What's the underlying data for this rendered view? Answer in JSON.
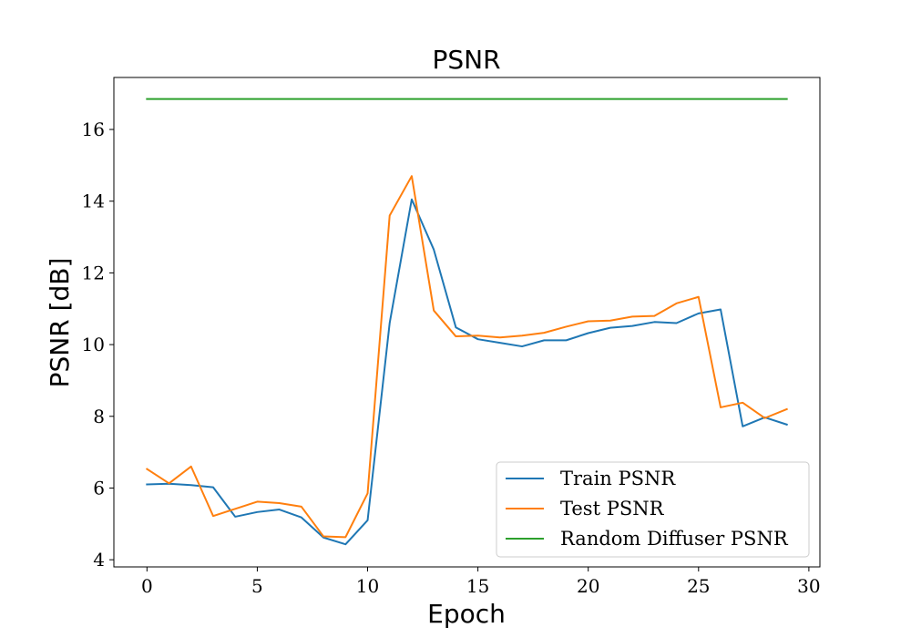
{
  "chart_data": {
    "type": "line",
    "title": "PSNR",
    "xlabel": "Epoch",
    "ylabel": "PSNR [dB]",
    "xlim": [
      -1.5,
      30.5
    ],
    "ylim": [
      3.8,
      17.45
    ],
    "xticks": [
      0,
      5,
      10,
      15,
      20,
      25,
      30
    ],
    "yticks": [
      4,
      6,
      8,
      10,
      12,
      14,
      16
    ],
    "grid": false,
    "legend": "lower-right",
    "x": [
      0,
      1,
      2,
      3,
      4,
      5,
      6,
      7,
      8,
      9,
      10,
      11,
      12,
      13,
      14,
      15,
      16,
      17,
      18,
      19,
      20,
      21,
      22,
      23,
      24,
      25,
      26,
      27,
      28,
      29
    ],
    "series": [
      {
        "name": "Train PSNR",
        "color": "#1f77b4",
        "values": [
          6.1,
          6.12,
          6.08,
          6.02,
          5.2,
          5.33,
          5.4,
          5.18,
          4.62,
          4.43,
          5.1,
          10.6,
          14.05,
          12.65,
          10.48,
          10.15,
          10.05,
          9.95,
          10.12,
          10.12,
          10.32,
          10.47,
          10.52,
          10.63,
          10.6,
          10.87,
          10.98,
          7.72,
          7.97,
          7.77
        ]
      },
      {
        "name": "Test PSNR",
        "color": "#ff7f0e",
        "values": [
          6.53,
          6.13,
          6.6,
          5.22,
          5.42,
          5.62,
          5.58,
          5.48,
          4.65,
          4.63,
          5.85,
          13.6,
          14.7,
          10.95,
          10.23,
          10.25,
          10.2,
          10.25,
          10.33,
          10.5,
          10.65,
          10.67,
          10.78,
          10.8,
          11.15,
          11.33,
          8.25,
          8.38,
          7.95,
          8.2
        ]
      },
      {
        "name": "Random Diffuser PSNR",
        "color": "#2ca02c",
        "values": [
          16.85,
          16.85,
          16.85,
          16.85,
          16.85,
          16.85,
          16.85,
          16.85,
          16.85,
          16.85,
          16.85,
          16.85,
          16.85,
          16.85,
          16.85,
          16.85,
          16.85,
          16.85,
          16.85,
          16.85,
          16.85,
          16.85,
          16.85,
          16.85,
          16.85,
          16.85,
          16.85,
          16.85,
          16.85,
          16.85
        ]
      }
    ]
  }
}
